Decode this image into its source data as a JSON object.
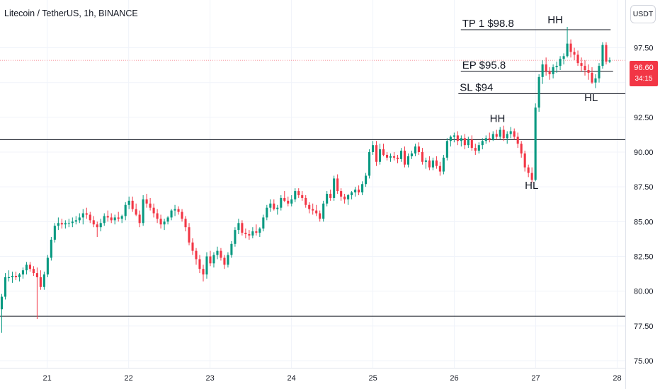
{
  "header": {
    "title": "Litecoin / TetherUS, 1h, BINANCE",
    "unit": "USDT"
  },
  "price_tag": {
    "price": "96.60",
    "countdown": "34:15",
    "color": "#f23645"
  },
  "colors": {
    "up": "#089981",
    "down": "#f23645",
    "grid": "#f0f3fa",
    "line": "#131722"
  },
  "chart_data": {
    "type": "candlestick",
    "title": "Litecoin / TetherUS, 1h, BINANCE",
    "x_ticks": [
      "21",
      "22",
      "23",
      "24",
      "25",
      "26",
      "27",
      "28"
    ],
    "y_ticks": [
      "75.00",
      "77.50",
      "80.00",
      "82.50",
      "85.00",
      "87.50",
      "90.00",
      "92.50",
      "95.00",
      "97.50"
    ],
    "ylim": [
      75,
      98.9
    ],
    "xlim": [
      20.42,
      28.1
    ],
    "grid": true,
    "last_price": 96.6,
    "horizontal_lines": [
      {
        "y": 78.2,
        "x_start": 20.42,
        "x_end": 28.1
      },
      {
        "y": 90.9,
        "x_start": 20.42,
        "x_end": 28.1
      },
      {
        "y": 98.8,
        "x_start": 26.08,
        "x_end": 27.92,
        "label": "TP 1 $98.8"
      },
      {
        "y": 95.8,
        "x_start": 26.08,
        "x_end": 27.95,
        "label": "EP $95.8"
      },
      {
        "y": 94.2,
        "x_start": 26.05,
        "x_end": 28.1,
        "label": "SL $94"
      }
    ],
    "annotations": [
      {
        "text": "HH",
        "x": 26.53,
        "y": 92.15
      },
      {
        "text": "HL",
        "x": 26.95,
        "y": 87.35
      },
      {
        "text": "HH",
        "x": 27.24,
        "y": 99.25
      },
      {
        "text": "HL",
        "x": 27.68,
        "y": 93.65
      }
    ],
    "candles_hourly_from": 20.42,
    "candles": [
      [
        78.7,
        79.8,
        77.0,
        79.6
      ],
      [
        79.6,
        81.3,
        79.4,
        81.0
      ],
      [
        81.0,
        81.5,
        80.7,
        81.0
      ],
      [
        81.0,
        81.4,
        80.6,
        81.1
      ],
      [
        81.1,
        81.4,
        80.8,
        81.0
      ],
      [
        81.0,
        81.3,
        80.7,
        81.2
      ],
      [
        81.2,
        81.7,
        80.9,
        81.5
      ],
      [
        81.5,
        82.1,
        81.2,
        81.9
      ],
      [
        81.9,
        82.1,
        81.4,
        81.6
      ],
      [
        81.6,
        81.8,
        81.1,
        81.3
      ],
      [
        81.3,
        81.7,
        78.0,
        81.0
      ],
      [
        81.0,
        81.5,
        80.1,
        80.3
      ],
      [
        80.3,
        81.4,
        80.1,
        81.2
      ],
      [
        81.2,
        82.6,
        81.0,
        82.4
      ],
      [
        82.4,
        83.9,
        82.2,
        83.7
      ],
      [
        83.7,
        84.9,
        83.5,
        84.7
      ],
      [
        84.7,
        85.3,
        84.4,
        84.9
      ],
      [
        84.9,
        85.2,
        84.5,
        84.8
      ],
      [
        84.8,
        85.1,
        84.5,
        84.9
      ],
      [
        84.9,
        85.2,
        84.6,
        84.9
      ],
      [
        84.9,
        85.3,
        84.6,
        85.0
      ],
      [
        85.0,
        85.4,
        84.8,
        85.1
      ],
      [
        85.1,
        85.6,
        84.9,
        85.3
      ],
      [
        85.3,
        85.9,
        84.8,
        85.6
      ],
      [
        85.6,
        86.0,
        85.2,
        85.5
      ],
      [
        85.5,
        85.7,
        84.9,
        85.1
      ],
      [
        85.1,
        85.4,
        84.6,
        84.8
      ],
      [
        84.8,
        85.0,
        83.9,
        84.6
      ],
      [
        84.6,
        85.2,
        84.3,
        84.9
      ],
      [
        84.9,
        85.6,
        84.7,
        85.4
      ],
      [
        85.4,
        85.8,
        85.0,
        85.3
      ],
      [
        85.3,
        85.6,
        84.9,
        85.1
      ],
      [
        85.1,
        85.5,
        84.8,
        85.3
      ],
      [
        85.3,
        85.7,
        85.0,
        85.2
      ],
      [
        85.2,
        85.5,
        84.9,
        85.4
      ],
      [
        85.4,
        86.4,
        85.1,
        86.2
      ],
      [
        86.2,
        86.8,
        85.9,
        86.5
      ],
      [
        86.5,
        86.8,
        85.7,
        85.9
      ],
      [
        85.9,
        86.3,
        85.4,
        85.5
      ],
      [
        85.5,
        85.8,
        84.6,
        84.9
      ],
      [
        84.9,
        86.9,
        84.7,
        86.6
      ],
      [
        86.6,
        87.0,
        86.0,
        86.3
      ],
      [
        86.3,
        86.7,
        85.8,
        86.0
      ],
      [
        86.0,
        86.3,
        85.3,
        85.6
      ],
      [
        85.6,
        85.9,
        84.9,
        85.2
      ],
      [
        85.2,
        85.5,
        84.5,
        84.8
      ],
      [
        84.8,
        85.2,
        84.4,
        85.0
      ],
      [
        85.0,
        85.4,
        84.8,
        85.3
      ],
      [
        85.3,
        85.9,
        85.1,
        85.8
      ],
      [
        85.8,
        86.2,
        85.4,
        85.9
      ],
      [
        85.9,
        86.1,
        85.5,
        85.7
      ],
      [
        85.7,
        85.9,
        85.0,
        85.2
      ],
      [
        85.2,
        85.4,
        84.3,
        84.6
      ],
      [
        84.6,
        84.9,
        83.3,
        83.5
      ],
      [
        83.5,
        83.8,
        82.6,
        82.9
      ],
      [
        82.9,
        83.1,
        81.9,
        82.3
      ],
      [
        82.3,
        82.6,
        81.3,
        81.6
      ],
      [
        81.6,
        81.9,
        80.7,
        81.2
      ],
      [
        81.2,
        82.8,
        80.9,
        82.5
      ],
      [
        82.5,
        82.9,
        81.8,
        82.0
      ],
      [
        82.0,
        82.8,
        81.7,
        82.6
      ],
      [
        82.6,
        83.2,
        82.3,
        82.9
      ],
      [
        82.9,
        83.1,
        82.2,
        82.4
      ],
      [
        82.4,
        82.6,
        81.6,
        81.9
      ],
      [
        81.9,
        82.8,
        81.7,
        82.6
      ],
      [
        82.6,
        83.6,
        82.4,
        83.4
      ],
      [
        83.4,
        84.6,
        83.2,
        84.4
      ],
      [
        84.4,
        85.2,
        84.1,
        84.9
      ],
      [
        84.9,
        85.1,
        84.0,
        84.2
      ],
      [
        84.2,
        84.5,
        83.8,
        84.1
      ],
      [
        84.1,
        84.4,
        83.7,
        84.0
      ],
      [
        84.0,
        84.6,
        83.8,
        84.3
      ],
      [
        84.3,
        84.8,
        84.0,
        84.2
      ],
      [
        84.2,
        84.6,
        83.9,
        84.5
      ],
      [
        84.5,
        85.5,
        84.3,
        85.3
      ],
      [
        85.3,
        86.2,
        85.1,
        86.0
      ],
      [
        86.0,
        86.6,
        85.7,
        86.3
      ],
      [
        86.3,
        86.6,
        85.8,
        85.9
      ],
      [
        85.9,
        86.2,
        85.5,
        86.0
      ],
      [
        86.0,
        86.9,
        85.8,
        86.7
      ],
      [
        86.7,
        87.2,
        86.4,
        86.5
      ],
      [
        86.5,
        86.8,
        86.1,
        86.3
      ],
      [
        86.3,
        86.9,
        86.1,
        86.6
      ],
      [
        86.6,
        87.4,
        86.4,
        87.2
      ],
      [
        87.2,
        87.4,
        86.7,
        86.9
      ],
      [
        86.9,
        87.2,
        86.5,
        86.7
      ],
      [
        86.7,
        86.9,
        86.0,
        86.2
      ],
      [
        86.2,
        86.4,
        85.6,
        85.9
      ],
      [
        85.9,
        86.3,
        85.5,
        85.8
      ],
      [
        85.8,
        86.2,
        85.4,
        85.6
      ],
      [
        85.6,
        85.8,
        85.0,
        85.2
      ],
      [
        85.2,
        86.5,
        85.0,
        86.3
      ],
      [
        86.3,
        87.2,
        86.1,
        87.0
      ],
      [
        87.0,
        87.3,
        86.5,
        86.7
      ],
      [
        86.7,
        88.3,
        86.5,
        88.1
      ],
      [
        88.1,
        88.4,
        87.0,
        87.2
      ],
      [
        87.2,
        87.4,
        86.5,
        86.8
      ],
      [
        86.8,
        87.0,
        86.3,
        86.6
      ],
      [
        86.6,
        87.0,
        86.2,
        86.9
      ],
      [
        86.9,
        87.2,
        86.6,
        87.1
      ],
      [
        87.1,
        87.5,
        86.8,
        87.3
      ],
      [
        87.3,
        87.6,
        86.9,
        87.1
      ],
      [
        87.1,
        87.9,
        86.9,
        87.7
      ],
      [
        87.7,
        88.5,
        87.5,
        88.3
      ],
      [
        88.3,
        90.2,
        88.1,
        90.0
      ],
      [
        90.0,
        90.8,
        89.8,
        90.5
      ],
      [
        90.5,
        90.8,
        89.0,
        89.3
      ],
      [
        89.3,
        90.6,
        89.1,
        90.2
      ],
      [
        90.2,
        90.6,
        89.7,
        89.8
      ],
      [
        89.8,
        90.0,
        89.4,
        89.6
      ],
      [
        89.6,
        89.9,
        89.3,
        89.7
      ],
      [
        89.7,
        90.0,
        89.4,
        89.6
      ],
      [
        89.6,
        89.8,
        89.2,
        89.5
      ],
      [
        89.5,
        90.3,
        89.3,
        90.1
      ],
      [
        90.1,
        90.4,
        88.9,
        89.1
      ],
      [
        89.1,
        89.9,
        88.9,
        89.7
      ],
      [
        89.7,
        90.1,
        89.5,
        89.9
      ],
      [
        89.9,
        90.6,
        89.7,
        90.4
      ],
      [
        90.4,
        90.7,
        89.8,
        90.0
      ],
      [
        90.0,
        90.3,
        89.1,
        89.3
      ],
      [
        89.3,
        89.6,
        88.8,
        89.4
      ],
      [
        89.4,
        89.7,
        88.7,
        88.9
      ],
      [
        88.9,
        89.6,
        88.7,
        89.4
      ],
      [
        89.4,
        89.7,
        88.8,
        89.0
      ],
      [
        89.0,
        89.3,
        88.3,
        88.6
      ],
      [
        88.6,
        89.8,
        88.4,
        89.6
      ],
      [
        89.6,
        91.0,
        89.4,
        90.8
      ],
      [
        90.8,
        91.2,
        90.4,
        91.1
      ],
      [
        91.1,
        91.4,
        90.7,
        91.2
      ],
      [
        91.2,
        91.5,
        90.5,
        90.8
      ],
      [
        90.8,
        91.2,
        90.4,
        91.0
      ],
      [
        91.0,
        91.3,
        90.2,
        90.5
      ],
      [
        90.5,
        91.1,
        90.3,
        90.9
      ],
      [
        90.9,
        91.2,
        90.1,
        90.3
      ],
      [
        90.3,
        90.6,
        89.8,
        90.1
      ],
      [
        90.1,
        90.7,
        89.9,
        90.5
      ],
      [
        90.5,
        91.0,
        90.2,
        90.8
      ],
      [
        90.8,
        91.2,
        90.6,
        91.0
      ],
      [
        91.0,
        91.4,
        90.7,
        90.9
      ],
      [
        90.9,
        91.5,
        90.8,
        91.3
      ],
      [
        91.3,
        91.6,
        90.9,
        91.1
      ],
      [
        91.1,
        91.8,
        90.9,
        91.6
      ],
      [
        91.6,
        91.9,
        90.8,
        91.0
      ],
      [
        91.0,
        91.5,
        90.6,
        91.3
      ],
      [
        91.3,
        91.8,
        91.0,
        91.5
      ],
      [
        91.5,
        91.7,
        90.9,
        91.1
      ],
      [
        91.1,
        91.4,
        90.3,
        90.6
      ],
      [
        90.6,
        90.8,
        89.6,
        89.9
      ],
      [
        89.9,
        90.1,
        88.6,
        88.9
      ],
      [
        88.9,
        89.1,
        88.2,
        88.5
      ],
      [
        88.5,
        88.9,
        87.8,
        88.0
      ],
      [
        88.0,
        93.5,
        87.9,
        93.2
      ],
      [
        93.2,
        95.6,
        92.9,
        95.4
      ],
      [
        95.4,
        96.6,
        94.9,
        96.3
      ],
      [
        96.3,
        96.8,
        95.5,
        95.8
      ],
      [
        95.8,
        96.1,
        95.2,
        95.6
      ],
      [
        95.6,
        96.3,
        95.3,
        96.1
      ],
      [
        96.1,
        96.5,
        95.7,
        96.2
      ],
      [
        96.2,
        96.9,
        95.9,
        96.7
      ],
      [
        96.7,
        97.1,
        96.3,
        96.9
      ],
      [
        96.9,
        99.0,
        96.8,
        97.8
      ],
      [
        97.8,
        98.1,
        96.8,
        97.2
      ],
      [
        97.2,
        97.5,
        96.6,
        97.0
      ],
      [
        97.0,
        97.3,
        96.2,
        96.4
      ],
      [
        96.4,
        96.8,
        95.8,
        96.2
      ],
      [
        96.2,
        96.6,
        95.5,
        95.9
      ],
      [
        95.9,
        96.3,
        95.2,
        95.7
      ],
      [
        95.7,
        96.1,
        94.9,
        95.0
      ],
      [
        95.0,
        95.6,
        94.6,
        95.3
      ],
      [
        95.3,
        96.4,
        95.0,
        96.2
      ],
      [
        96.2,
        97.9,
        96.0,
        97.7
      ],
      [
        97.7,
        97.9,
        96.3,
        96.5
      ],
      [
        96.5,
        96.8,
        96.4,
        96.6
      ]
    ]
  }
}
